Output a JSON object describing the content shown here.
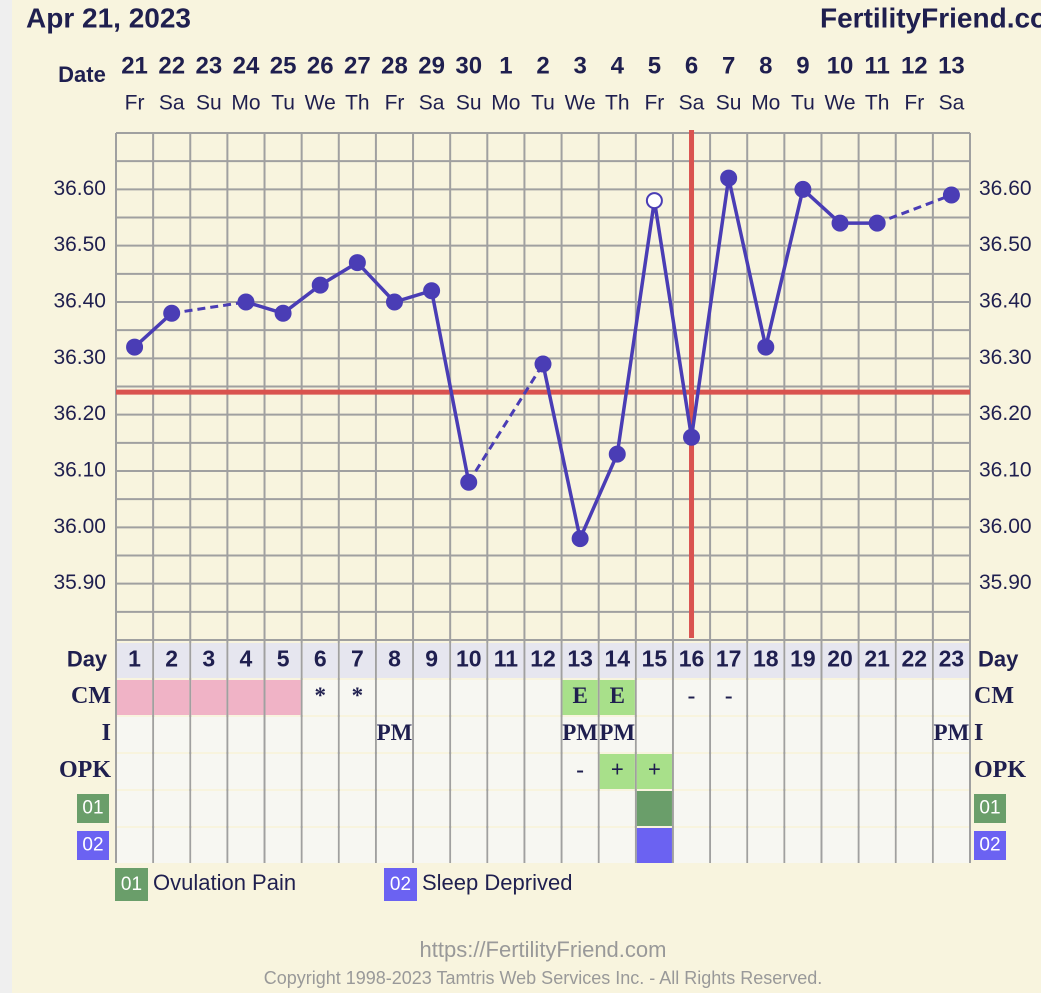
{
  "header": {
    "date": "Apr 21, 2023",
    "site": "FertilityFriend.com"
  },
  "chart_data": {
    "type": "line",
    "x_label": "Date",
    "dates": [
      "21",
      "22",
      "23",
      "24",
      "25",
      "26",
      "27",
      "28",
      "29",
      "30",
      "1",
      "2",
      "3",
      "4",
      "5",
      "6",
      "7",
      "8",
      "9",
      "10",
      "11",
      "12",
      "13"
    ],
    "weekdays": [
      "Fr",
      "Sa",
      "Su",
      "Mo",
      "Tu",
      "We",
      "Th",
      "Fr",
      "Sa",
      "Su",
      "Mo",
      "Tu",
      "We",
      "Th",
      "Fr",
      "Sa",
      "Su",
      "Mo",
      "Tu",
      "We",
      "Th",
      "Fr",
      "Sa"
    ],
    "day_label": "Day",
    "days": [
      1,
      2,
      3,
      4,
      5,
      6,
      7,
      8,
      9,
      10,
      11,
      12,
      13,
      14,
      15,
      16,
      17,
      18,
      19,
      20,
      21,
      22,
      23
    ],
    "values": [
      36.32,
      36.38,
      null,
      36.4,
      36.38,
      36.43,
      36.47,
      36.4,
      36.42,
      36.08,
      null,
      36.29,
      35.98,
      36.13,
      36.58,
      36.16,
      36.62,
      36.32,
      36.6,
      36.54,
      36.54,
      null,
      36.59
    ],
    "color": "#4a3db5",
    "hollow_index": 14,
    "ylim": [
      35.8,
      36.7
    ],
    "yticks": [
      {
        "value": 35.9,
        "label": "35.90"
      },
      {
        "value": 36.0,
        "label": "36.00"
      },
      {
        "value": 36.1,
        "label": "36.10"
      },
      {
        "value": 36.2,
        "label": "36.20"
      },
      {
        "value": 36.3,
        "label": "36.30"
      },
      {
        "value": 36.4,
        "label": "36.40"
      },
      {
        "value": 36.5,
        "label": "36.50"
      },
      {
        "value": 36.6,
        "label": "36.60"
      }
    ],
    "grid": true,
    "coverline": {
      "value": 36.24,
      "color": "#d9534f"
    },
    "ovulation_day": 16,
    "rows": [
      {
        "label": "CM",
        "cells": [
          null,
          null,
          null,
          null,
          null,
          "*",
          "*",
          null,
          null,
          null,
          null,
          null,
          "E",
          "E",
          null,
          "-",
          "-",
          null,
          null,
          null,
          null,
          null,
          null
        ],
        "fills": [
          "#f0b3c6",
          "#f0b3c6",
          "#f0b3c6",
          "#f0b3c6",
          "#f0b3c6",
          null,
          null,
          null,
          null,
          null,
          null,
          null,
          "#a8e08a",
          "#a8e08a",
          null,
          null,
          null,
          null,
          null,
          null,
          null,
          null,
          null
        ]
      },
      {
        "label": "I",
        "cells": [
          null,
          null,
          null,
          null,
          null,
          null,
          null,
          "PM",
          null,
          null,
          null,
          null,
          "PM",
          "PM",
          null,
          null,
          null,
          null,
          null,
          null,
          null,
          null,
          "PM"
        ]
      },
      {
        "label": "OPK",
        "cells": [
          null,
          null,
          null,
          null,
          null,
          null,
          null,
          null,
          null,
          null,
          null,
          null,
          "-",
          "+",
          "+",
          null,
          null,
          null,
          null,
          null,
          null,
          null,
          null
        ],
        "fills": [
          null,
          null,
          null,
          null,
          null,
          null,
          null,
          null,
          null,
          null,
          null,
          null,
          null,
          "#a8e08a",
          "#a8e08a",
          null,
          null,
          null,
          null,
          null,
          null,
          null,
          null
        ]
      },
      {
        "label": "01",
        "label_color": "#6a9e6a",
        "fills": [
          null,
          null,
          null,
          null,
          null,
          null,
          null,
          null,
          null,
          null,
          null,
          null,
          null,
          null,
          "#6a9e6a",
          null,
          null,
          null,
          null,
          null,
          null,
          null,
          null
        ]
      },
      {
        "label": "02",
        "label_color": "#6b62f2",
        "fills": [
          null,
          null,
          null,
          null,
          null,
          null,
          null,
          null,
          null,
          null,
          null,
          null,
          null,
          null,
          "#6b62f2",
          null,
          null,
          null,
          null,
          null,
          null,
          null,
          null
        ]
      }
    ],
    "legend": [
      {
        "code": "01",
        "text": "Ovulation Pain",
        "color": "#6a9e6a"
      },
      {
        "code": "02",
        "text": "Sleep Deprived",
        "color": "#6b62f2"
      }
    ]
  },
  "footer": {
    "url": "https://FertilityFriend.com",
    "copyright": "Copyright 1998-2023 Tamtris Web Services Inc. - All Rights Reserved."
  }
}
